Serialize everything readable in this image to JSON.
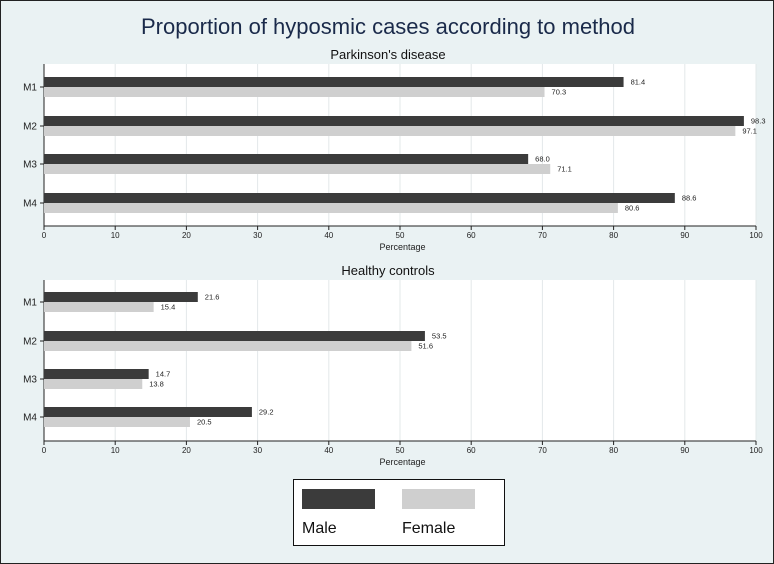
{
  "chart_data": {
    "type": "bar",
    "orientation": "horizontal",
    "title": "Proportion of hyposmic cases according to method",
    "categories": [
      "M1",
      "M2",
      "M3",
      "M4"
    ],
    "colors": {
      "Male": "#3b3b3b",
      "Female": "#cfcfcf",
      "background": "#eaf2f3",
      "plot": "#ffffff"
    },
    "legend": {
      "position": "bottom",
      "entries": [
        "Male",
        "Female"
      ]
    },
    "panels": [
      {
        "title": "Parkinson's disease",
        "xlabel": "Percentage",
        "xlim": [
          0,
          100
        ],
        "xticks": [
          0,
          10,
          20,
          30,
          40,
          50,
          60,
          70,
          80,
          90,
          100
        ],
        "grid": true,
        "series": [
          {
            "name": "Male",
            "values": [
              81.4,
              98.3,
              68.0,
              88.6
            ],
            "labels": [
              "81.4",
              "98.3",
              "68.0",
              "88.6"
            ]
          },
          {
            "name": "Female",
            "values": [
              70.3,
              97.1,
              71.1,
              80.6
            ],
            "labels": [
              "70.3",
              "97.1",
              "71.1",
              "80.6"
            ]
          }
        ]
      },
      {
        "title": "Healthy controls",
        "xlabel": "Percentage",
        "xlim": [
          0,
          100
        ],
        "xticks": [
          0,
          10,
          20,
          30,
          40,
          50,
          60,
          70,
          80,
          90,
          100
        ],
        "grid": true,
        "series": [
          {
            "name": "Male",
            "values": [
              21.6,
              53.5,
              14.7,
              29.2
            ],
            "labels": [
              "21.6",
              "53.5",
              "14.7",
              "29.2"
            ]
          },
          {
            "name": "Female",
            "values": [
              15.4,
              51.6,
              13.8,
              20.5
            ],
            "labels": [
              "15.4",
              "51.6",
              "13.8",
              "20.5"
            ]
          }
        ]
      }
    ]
  }
}
